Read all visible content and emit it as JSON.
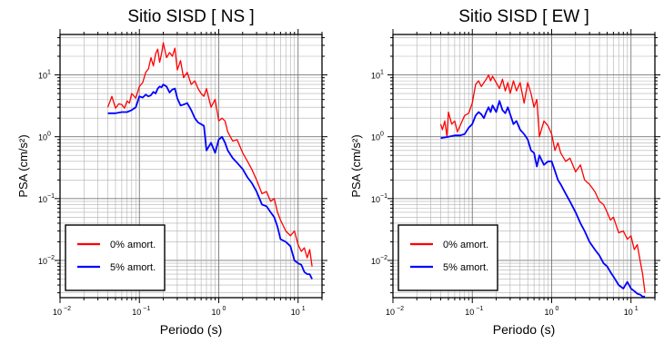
{
  "chart_data": [
    {
      "type": "line",
      "title": "Sitio SISD [ NS ]",
      "xlabel": "Periodo (s)",
      "ylabel": "PSA (cm/s²)",
      "x_scale": "log",
      "y_scale": "log",
      "xlim": [
        0.01,
        20
      ],
      "ylim": [
        0.0025,
        45
      ],
      "x_ticks": [
        {
          "value": 0.01,
          "base": "10",
          "exp": "−2"
        },
        {
          "value": 0.1,
          "base": "10",
          "exp": "−1"
        },
        {
          "value": 1,
          "base": "10",
          "exp": "0"
        },
        {
          "value": 10,
          "base": "10",
          "exp": "1"
        }
      ],
      "y_ticks": [
        {
          "value": 0.01,
          "base": "10",
          "exp": "−2"
        },
        {
          "value": 0.1,
          "base": "10",
          "exp": "−1"
        },
        {
          "value": 1,
          "base": "10",
          "exp": "0"
        },
        {
          "value": 10,
          "base": "10",
          "exp": "1"
        }
      ],
      "grid": true,
      "legend_position": "bottom-left",
      "series": [
        {
          "name": "0% amort.",
          "color": "#ff0000",
          "x": [
            0.04,
            0.045,
            0.05,
            0.055,
            0.06,
            0.065,
            0.07,
            0.075,
            0.08,
            0.09,
            0.1,
            0.11,
            0.12,
            0.13,
            0.14,
            0.15,
            0.16,
            0.17,
            0.18,
            0.19,
            0.2,
            0.22,
            0.24,
            0.26,
            0.28,
            0.3,
            0.33,
            0.36,
            0.4,
            0.45,
            0.5,
            0.55,
            0.6,
            0.65,
            0.7,
            0.8,
            0.9,
            1.0,
            1.1,
            1.2,
            1.3,
            1.5,
            1.7,
            2.0,
            2.3,
            2.6,
            3.0,
            3.5,
            4.0,
            4.5,
            5.0,
            5.5,
            6.0,
            7.0,
            8.0,
            9.0,
            10,
            11,
            12,
            13,
            14,
            15
          ],
          "y": [
            3.0,
            4.5,
            2.9,
            3.4,
            3.3,
            2.9,
            3.8,
            3.5,
            5.0,
            4.2,
            6.5,
            7.5,
            11,
            12.5,
            19,
            14,
            22,
            26,
            16,
            22,
            33,
            19,
            23,
            20,
            27,
            12,
            17,
            9,
            11,
            7,
            8,
            6,
            5,
            4.5,
            6,
            3,
            4,
            1.8,
            2.0,
            1.8,
            1.2,
            0.85,
            0.9,
            0.55,
            0.4,
            0.3,
            0.2,
            0.12,
            0.13,
            0.09,
            0.1,
            0.06,
            0.045,
            0.03,
            0.025,
            0.03,
            0.018,
            0.014,
            0.016,
            0.011,
            0.015,
            0.008
          ]
        },
        {
          "name": "5% amort.",
          "color": "#0000ff",
          "x": [
            0.04,
            0.05,
            0.06,
            0.07,
            0.08,
            0.09,
            0.1,
            0.11,
            0.12,
            0.13,
            0.14,
            0.15,
            0.16,
            0.17,
            0.18,
            0.19,
            0.2,
            0.22,
            0.24,
            0.26,
            0.28,
            0.3,
            0.33,
            0.36,
            0.4,
            0.45,
            0.5,
            0.55,
            0.6,
            0.65,
            0.7,
            0.8,
            0.9,
            1.0,
            1.1,
            1.2,
            1.3,
            1.5,
            1.7,
            2.0,
            2.3,
            2.6,
            3.0,
            3.5,
            4.0,
            4.5,
            5.0,
            5.5,
            6.0,
            7.0,
            8.0,
            9.0,
            10,
            11,
            12,
            13,
            14,
            15
          ],
          "y": [
            2.4,
            2.4,
            2.5,
            2.5,
            2.7,
            3.0,
            4.5,
            4.3,
            4.8,
            4.5,
            4.7,
            5.3,
            5.0,
            6.0,
            6.5,
            6.3,
            7.0,
            6.5,
            5.2,
            5.8,
            6.0,
            4.2,
            3.2,
            3.3,
            3.5,
            2.7,
            2.0,
            1.7,
            1.6,
            1.5,
            0.6,
            0.8,
            0.55,
            0.9,
            1.0,
            0.8,
            0.6,
            0.45,
            0.38,
            0.3,
            0.22,
            0.18,
            0.13,
            0.08,
            0.075,
            0.06,
            0.05,
            0.035,
            0.022,
            0.02,
            0.017,
            0.01,
            0.009,
            0.0085,
            0.0065,
            0.006,
            0.006,
            0.005
          ]
        }
      ]
    },
    {
      "type": "line",
      "title": "Sitio SISD [ EW ]",
      "xlabel": "Periodo (s)",
      "ylabel": "PSA (cm/s²)",
      "x_scale": "log",
      "y_scale": "log",
      "xlim": [
        0.01,
        20
      ],
      "ylim": [
        0.0025,
        45
      ],
      "x_ticks": [
        {
          "value": 0.01,
          "base": "10",
          "exp": "−2"
        },
        {
          "value": 0.1,
          "base": "10",
          "exp": "−1"
        },
        {
          "value": 1,
          "base": "10",
          "exp": "0"
        },
        {
          "value": 10,
          "base": "10",
          "exp": "1"
        }
      ],
      "y_ticks": [
        {
          "value": 0.01,
          "base": "10",
          "exp": "−2"
        },
        {
          "value": 0.1,
          "base": "10",
          "exp": "−1"
        },
        {
          "value": 1,
          "base": "10",
          "exp": "0"
        },
        {
          "value": 10,
          "base": "10",
          "exp": "1"
        }
      ],
      "grid": true,
      "legend_position": "bottom-left",
      "series": [
        {
          "name": "0% amort.",
          "color": "#ff0000",
          "x": [
            0.04,
            0.042,
            0.045,
            0.048,
            0.05,
            0.055,
            0.06,
            0.065,
            0.07,
            0.08,
            0.09,
            0.1,
            0.11,
            0.12,
            0.13,
            0.14,
            0.15,
            0.16,
            0.17,
            0.18,
            0.2,
            0.22,
            0.24,
            0.26,
            0.28,
            0.3,
            0.33,
            0.36,
            0.4,
            0.45,
            0.5,
            0.55,
            0.6,
            0.65,
            0.7,
            0.8,
            0.9,
            1.0,
            1.1,
            1.2,
            1.3,
            1.5,
            1.7,
            2.0,
            2.3,
            2.6,
            3.0,
            3.5,
            4.0,
            4.5,
            5.0,
            5.5,
            6.0,
            7.0,
            8.0,
            9.0,
            10,
            11,
            12,
            13,
            14,
            15
          ],
          "y": [
            1.6,
            1.3,
            1.8,
            1.0,
            2.5,
            1.6,
            1.8,
            1.2,
            1.5,
            2.2,
            2.4,
            3.5,
            7.0,
            8.0,
            6.5,
            7.5,
            8.5,
            10.0,
            8.0,
            9.5,
            7.5,
            6.0,
            8.5,
            5.5,
            7.5,
            5.0,
            8.0,
            5.5,
            7.5,
            3.5,
            7.5,
            5.0,
            3.0,
            4.0,
            1.0,
            1.8,
            1.5,
            1.1,
            0.6,
            0.8,
            0.55,
            0.4,
            0.45,
            0.27,
            0.35,
            0.2,
            0.17,
            0.13,
            0.09,
            0.08,
            0.06,
            0.045,
            0.05,
            0.028,
            0.03,
            0.022,
            0.025,
            0.015,
            0.018,
            0.01,
            0.006,
            0.003
          ]
        },
        {
          "name": "5% amort.",
          "color": "#0000ff",
          "x": [
            0.04,
            0.05,
            0.06,
            0.07,
            0.08,
            0.09,
            0.1,
            0.11,
            0.12,
            0.13,
            0.14,
            0.15,
            0.16,
            0.17,
            0.18,
            0.2,
            0.22,
            0.24,
            0.26,
            0.28,
            0.3,
            0.33,
            0.36,
            0.4,
            0.45,
            0.5,
            0.55,
            0.6,
            0.65,
            0.7,
            0.8,
            0.9,
            1.0,
            1.1,
            1.2,
            1.3,
            1.5,
            1.7,
            2.0,
            2.3,
            2.6,
            3.0,
            3.5,
            4.0,
            4.5,
            5.0,
            5.5,
            6.0,
            7.0,
            8.0,
            9.0,
            10,
            11,
            12,
            13,
            14,
            15
          ],
          "y": [
            0.95,
            1.0,
            1.05,
            1.05,
            1.1,
            1.4,
            1.6,
            2.2,
            2.5,
            2.3,
            2.0,
            2.5,
            3.0,
            2.5,
            3.2,
            2.5,
            3.8,
            2.7,
            2.4,
            3.0,
            2.3,
            1.6,
            1.8,
            1.3,
            1.1,
            0.9,
            0.6,
            0.55,
            0.33,
            0.5,
            0.35,
            0.4,
            0.4,
            0.28,
            0.2,
            0.17,
            0.12,
            0.09,
            0.06,
            0.04,
            0.03,
            0.02,
            0.015,
            0.012,
            0.009,
            0.008,
            0.0065,
            0.0055,
            0.004,
            0.0035,
            0.0045,
            0.0035,
            0.0032,
            0.0029,
            0.0028,
            0.0026,
            0.0026
          ]
        }
      ]
    }
  ]
}
